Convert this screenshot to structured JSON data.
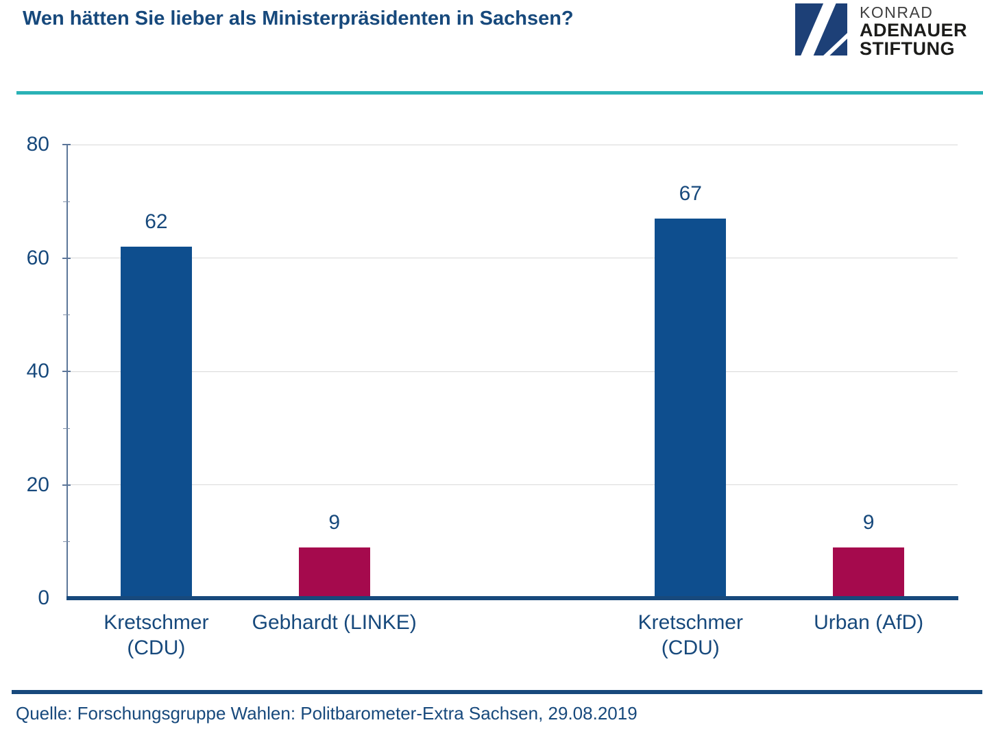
{
  "header": {
    "title": "Wen hätten Sie lieber als Ministerpräsidenten in Sachsen?",
    "logo": {
      "line1": "KONRAD",
      "line2": "ADENAUER",
      "line3": "STIFTUNG"
    }
  },
  "footer": {
    "source": "Quelle: Forschungsgruppe Wahlen: Politbarometer-Extra Sachsen, 29.08.2019"
  },
  "colors": {
    "bar_blue": "#0E4E8E",
    "bar_red": "#A50A4D",
    "text_navy": "#17497C",
    "accent_teal": "#2AB2B6",
    "gridline_gray": "#D9D9D9",
    "axis_gray_blue": "#5C7699",
    "logo_blue": "#1D4077"
  },
  "chart_data": {
    "type": "bar",
    "title": "Wen hätten Sie lieber als Ministerpräsidenten in Sachsen?",
    "categories": [
      "Kretschmer\n(CDU)",
      "Gebhardt (LINKE)",
      "",
      "Kretschmer\n(CDU)",
      "Urban (AfD)"
    ],
    "values": [
      62,
      9,
      null,
      67,
      9
    ],
    "bar_colors": [
      "#0E4E8E",
      "#A50A4D",
      null,
      "#0E4E8E",
      "#A50A4D"
    ],
    "xlabel": "",
    "ylabel": "",
    "ylim": [
      0,
      80
    ],
    "yticks": [
      0,
      20,
      40,
      60,
      80
    ],
    "minor_yticks": [
      10,
      30,
      50,
      70
    ],
    "grid": true,
    "legend": false
  }
}
